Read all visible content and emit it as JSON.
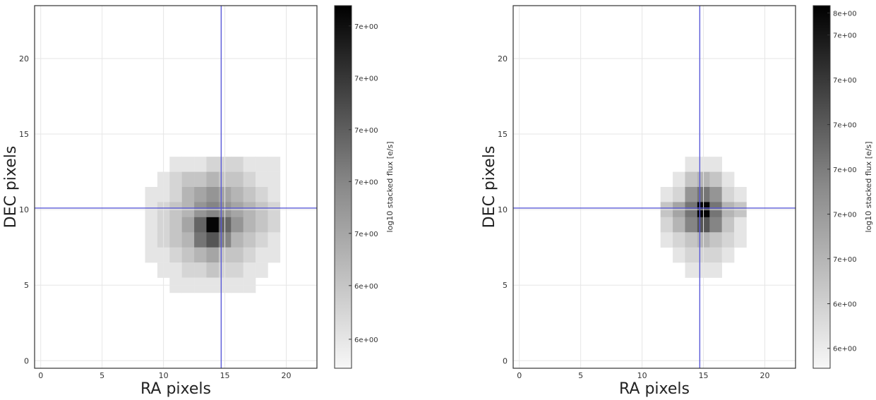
{
  "chart_data": [
    {
      "type": "heatmap",
      "xlabel": "RA pixels",
      "ylabel": "DEC pixels",
      "xlim": [
        -0.5,
        22.5
      ],
      "ylim": [
        -0.5,
        23.5
      ],
      "xticks": [
        0,
        5,
        10,
        15,
        20
      ],
      "yticks": [
        0,
        5,
        10,
        15,
        20
      ],
      "grid": true,
      "crosshair": {
        "x": 14.7,
        "y": 10.1,
        "color": "#5a5ad8"
      },
      "colormap": "gray_r",
      "colorbar": {
        "label": "log10 stacked flux [e/s]",
        "tick_labels": [
          "6e+00",
          "6e+00",
          "7e+00",
          "7e+00",
          "7e+00",
          "7e+00",
          "7e+00",
          "7e+00"
        ],
        "tick_fractions": [
          0.08,
          0.228,
          0.372,
          0.515,
          0.658,
          0.801,
          0.944,
          1.0
        ]
      },
      "pixel_grid": {
        "x0": 9,
        "y_top": 13,
        "rows": [
          "00111222111",
          "01233433211",
          "11245654321",
          "12346765432",
          "12359F96432",
          "12348A74321",
          "11234533211",
          "01122322110",
          "00111111100"
        ]
      },
      "ytick_offset": 0,
      "cbar_tick_order": [
        0,
        1,
        2,
        3,
        4,
        5,
        6
      ]
    },
    {
      "type": "heatmap",
      "xlabel": "RA pixels",
      "ylabel": "DEC pixels",
      "xlim": [
        -0.5,
        22.5
      ],
      "ylim": [
        -0.5,
        23.5
      ],
      "xticks": [
        0,
        5,
        10,
        15,
        20
      ],
      "yticks": [
        0,
        5,
        10,
        15,
        20
      ],
      "grid": true,
      "crosshair": {
        "x": 14.7,
        "y": 10.1,
        "color": "#5a5ad8"
      },
      "colormap": "gray_r",
      "colorbar": {
        "label": "log10 stacked flux [e/s]",
        "tick_labels": [
          "6e+00",
          "6e+00",
          "7e+00",
          "7e+00",
          "7e+00",
          "7e+00",
          "7e+00",
          "7e+00",
          "8e+00"
        ],
        "tick_fractions": [
          0.055,
          0.178,
          0.302,
          0.425,
          0.549,
          0.672,
          0.796,
          0.919,
          0.98
        ]
      },
      "pixel_grid": {
        "x0": 11,
        "y_top": 13,
        "rows": [
          "00011100",
          "00134310",
          "01268621",
          "0358F8430",
          "0247A7310",
          "01234321",
          "00122210",
          "00011100"
        ]
      }
    }
  ]
}
